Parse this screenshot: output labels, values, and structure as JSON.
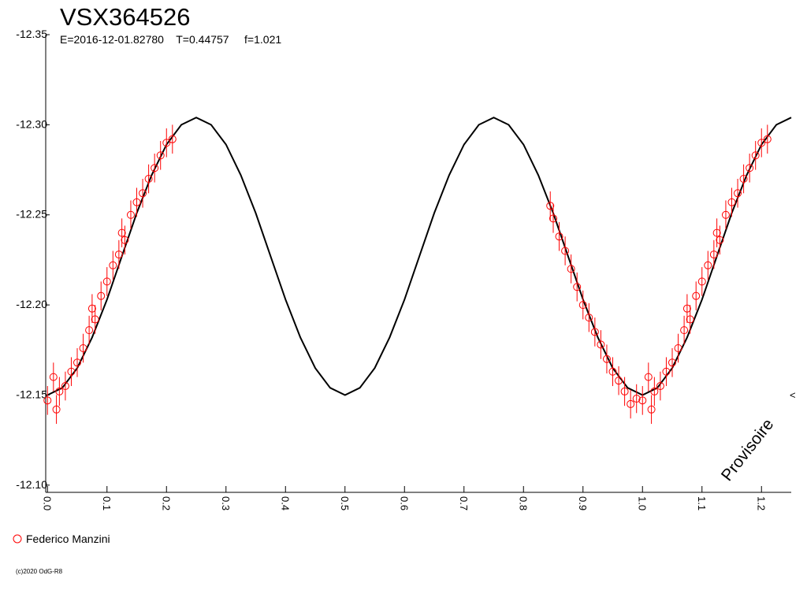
{
  "chart_data": {
    "type": "scatter",
    "title": "VSX364526",
    "subtitle": "E=2016-12-01.82780    T=0.44757     f=1.021",
    "watermark": "Provisoire",
    "edge_marker": "<",
    "copyright": "(c)2020 OdG-R8",
    "xlim": [
      -0.003,
      1.25
    ],
    "ylim": [
      -12.35,
      -12.096
    ],
    "inverted_y": true,
    "xticks": [
      {
        "value": 0,
        "label": "0.0"
      },
      0.1,
      0.2,
      0.3,
      0.4,
      0.5,
      0.6,
      0.7,
      0.8,
      0.9,
      {
        "value": 1,
        "label": "1.0"
      },
      1.1,
      1.2
    ],
    "yticks": [
      -12.35,
      {
        "value": -12.3,
        "label": "-12.30"
      },
      -12.25,
      {
        "value": -12.2,
        "label": "-12.20"
      },
      -12.15,
      {
        "value": -12.1,
        "label": "-12.10"
      }
    ],
    "fit": {
      "color": "#000000",
      "x": [
        0,
        0.025,
        0.05,
        0.075,
        0.1,
        0.125,
        0.15,
        0.175,
        0.2,
        0.225,
        0.25,
        0.275,
        0.3,
        0.325,
        0.35,
        0.375,
        0.4,
        0.425,
        0.45,
        0.475,
        0.5,
        0.525,
        0.55,
        0.575,
        0.6,
        0.625,
        0.65,
        0.675,
        0.7,
        0.725,
        0.75,
        0.775,
        0.8,
        0.825,
        0.85,
        0.875,
        0.9,
        0.925,
        0.95,
        0.975,
        1,
        1.025,
        1.05,
        1.075,
        1.1,
        1.125,
        1.15,
        1.175,
        1.2,
        1.225,
        1.25
      ],
      "values": [
        -12.15,
        -12.154,
        -12.165,
        -12.182,
        -12.203,
        -12.227,
        -12.251,
        -12.272,
        -12.289,
        -12.3,
        -12.304,
        -12.3,
        -12.289,
        -12.272,
        -12.251,
        -12.227,
        -12.203,
        -12.182,
        -12.165,
        -12.154,
        -12.15,
        -12.154,
        -12.165,
        -12.182,
        -12.203,
        -12.227,
        -12.251,
        -12.272,
        -12.289,
        -12.3,
        -12.304,
        -12.3,
        -12.289,
        -12.272,
        -12.251,
        -12.227,
        -12.203,
        -12.182,
        -12.165,
        -12.154,
        -12.15,
        -12.154,
        -12.165,
        -12.182,
        -12.203,
        -12.227,
        -12.251,
        -12.272,
        -12.289,
        -12.3,
        -12.304
      ]
    },
    "series": [
      {
        "name": "Federico Manzini",
        "color": "#ff0000",
        "x": [
          0,
          0.01,
          0.015,
          0.02,
          0.03,
          0.04,
          0.05,
          0.06,
          0.07,
          0.075,
          0.08,
          0.09,
          0.1,
          0.11,
          0.12,
          0.125,
          0.13,
          0.14,
          0.15,
          0.16,
          0.17,
          0.18,
          0.19,
          0.2,
          0.21,
          0.845,
          0.85,
          0.86,
          0.87,
          0.88,
          0.89,
          0.9,
          0.91,
          0.92,
          0.93,
          0.94,
          0.95,
          0.96,
          0.97,
          0.98,
          0.99,
          1,
          1.01,
          1.015,
          1.02,
          1.03,
          1.04,
          1.05,
          1.06,
          1.07,
          1.075,
          1.08,
          1.09,
          1.1,
          1.11,
          1.12,
          1.125,
          1.13,
          1.14,
          1.15,
          1.16,
          1.17,
          1.18,
          1.19,
          1.2,
          1.21
        ],
        "values": [
          -12.147,
          -12.16,
          -12.142,
          -12.152,
          -12.155,
          -12.163,
          -12.168,
          -12.176,
          -12.186,
          -12.198,
          -12.192,
          -12.205,
          -12.213,
          -12.222,
          -12.228,
          -12.24,
          -12.236,
          -12.25,
          -12.257,
          -12.262,
          -12.27,
          -12.276,
          -12.283,
          -12.29,
          -12.292,
          -12.255,
          -12.248,
          -12.238,
          -12.23,
          -12.22,
          -12.21,
          -12.2,
          -12.193,
          -12.185,
          -12.178,
          -12.17,
          -12.163,
          -12.158,
          -12.152,
          -12.145,
          -12.148,
          -12.147,
          -12.16,
          -12.142,
          -12.152,
          -12.155,
          -12.163,
          -12.168,
          -12.176,
          -12.186,
          -12.198,
          -12.192,
          -12.205,
          -12.213,
          -12.222,
          -12.228,
          -12.24,
          -12.236,
          -12.25,
          -12.257,
          -12.262,
          -12.27,
          -12.276,
          -12.283,
          -12.29,
          -12.292
        ],
        "errors": [
          0.008,
          0.008,
          0.008,
          0.008,
          0.008,
          0.008,
          0.008,
          0.008,
          0.008,
          0.008,
          0.008,
          0.008,
          0.008,
          0.008,
          0.008,
          0.008,
          0.008,
          0.008,
          0.008,
          0.008,
          0.008,
          0.008,
          0.008,
          0.008,
          0.008,
          0.008,
          0.008,
          0.008,
          0.008,
          0.008,
          0.008,
          0.008,
          0.008,
          0.008,
          0.008,
          0.008,
          0.008,
          0.008,
          0.008,
          0.008,
          0.008,
          0.008,
          0.008,
          0.008,
          0.008,
          0.008,
          0.008,
          0.008,
          0.008,
          0.008,
          0.008,
          0.008,
          0.008,
          0.008,
          0.008,
          0.008,
          0.008,
          0.008,
          0.008,
          0.008,
          0.008,
          0.008,
          0.008,
          0.008,
          0.008,
          0.008
        ]
      }
    ]
  }
}
